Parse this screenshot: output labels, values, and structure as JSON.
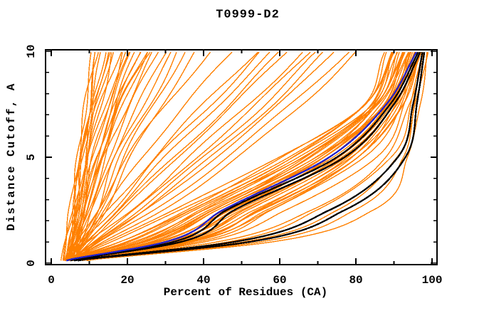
{
  "window": {
    "title": "T0999-D2"
  },
  "chart_data": {
    "type": "line",
    "title": "T0999-D2",
    "xlabel": "Percent of Residues (CA)",
    "ylabel": "Distance Cutoff, A",
    "xlim": [
      0,
      100
    ],
    "ylim": [
      0,
      10
    ],
    "x_major_ticks": [
      0,
      20,
      40,
      60,
      80,
      100
    ],
    "x_minor_ticks": [
      10,
      30,
      50,
      70,
      90
    ],
    "y_major_ticks": [
      0,
      5,
      10
    ],
    "y_minor_ticks": [
      1,
      2,
      3,
      4,
      6,
      7,
      8,
      9
    ],
    "grid": false,
    "legend": "none",
    "background": "#ffffff",
    "axis_color": "#000000",
    "y_levels": [
      0.15,
      1,
      2.5,
      5,
      7.5,
      10
    ],
    "series": [
      {
        "name": "model-curves-orange",
        "color": "#ff8000",
        "width": 1.4,
        "curves": [
          [
            4,
            5,
            6,
            8,
            10,
            12
          ],
          [
            4,
            5,
            7,
            9,
            12,
            15
          ],
          [
            5,
            6,
            8,
            11,
            15,
            19
          ],
          [
            4,
            6,
            9,
            13,
            17,
            22
          ],
          [
            5,
            7,
            10,
            14,
            19,
            25
          ],
          [
            4,
            6,
            9,
            14,
            20,
            27
          ],
          [
            5,
            7,
            11,
            16,
            23,
            30
          ],
          [
            6,
            8,
            12,
            18,
            26,
            33
          ],
          [
            4,
            5,
            8,
            12,
            17,
            24
          ],
          [
            3,
            4,
            6,
            9,
            13,
            18
          ],
          [
            4,
            5,
            7,
            10,
            14,
            20
          ],
          [
            5,
            6,
            9,
            13,
            18,
            26
          ],
          [
            6,
            9,
            13,
            19,
            27,
            35
          ],
          [
            4,
            5,
            6,
            7,
            9,
            11
          ],
          [
            3,
            4,
            5,
            7,
            9,
            12
          ],
          [
            5,
            6,
            8,
            10,
            13,
            16
          ],
          [
            6,
            7,
            9,
            12,
            16,
            21
          ],
          [
            4,
            5,
            7,
            9,
            11,
            14
          ],
          [
            5,
            8,
            12,
            17,
            24,
            32
          ],
          [
            6,
            8,
            11,
            15,
            21,
            28
          ],
          [
            3,
            4,
            6,
            8,
            11,
            15
          ],
          [
            4,
            6,
            8,
            11,
            15,
            21
          ],
          [
            5,
            7,
            9,
            12,
            17,
            23
          ],
          [
            6,
            9,
            14,
            21,
            29,
            38
          ],
          [
            4,
            5,
            6,
            8,
            11,
            13
          ],
          [
            5,
            6,
            7,
            9,
            12,
            16
          ],
          [
            4,
            5,
            7,
            8,
            10,
            12
          ],
          [
            6,
            7,
            10,
            13,
            18,
            25
          ],
          [
            4,
            7,
            12,
            20,
            30,
            42
          ],
          [
            4,
            8,
            14,
            24,
            35,
            48
          ],
          [
            5,
            8,
            15,
            27,
            40,
            54
          ],
          [
            4,
            9,
            17,
            30,
            44,
            58
          ],
          [
            5,
            10,
            19,
            33,
            48,
            62
          ],
          [
            4,
            10,
            21,
            36,
            52,
            66
          ],
          [
            5,
            11,
            23,
            40,
            56,
            70
          ],
          [
            6,
            12,
            25,
            43,
            60,
            74
          ],
          [
            4,
            8,
            16,
            28,
            42,
            55
          ],
          [
            5,
            9,
            18,
            32,
            47,
            60
          ],
          [
            6,
            13,
            27,
            46,
            63,
            78
          ],
          [
            5,
            12,
            24,
            42,
            58,
            72
          ],
          [
            4,
            11,
            22,
            38,
            54,
            68
          ],
          [
            6,
            14,
            29,
            49,
            66,
            80
          ],
          [
            4,
            14,
            32,
            60,
            82,
            88
          ],
          [
            4,
            16,
            34,
            62,
            83,
            89
          ],
          [
            4,
            18,
            36,
            64,
            84,
            90
          ],
          [
            5,
            20,
            38,
            66,
            85,
            91
          ],
          [
            4,
            22,
            40,
            68,
            86,
            92
          ],
          [
            5,
            24,
            42,
            70,
            87,
            93
          ],
          [
            4,
            26,
            44,
            71,
            87,
            93.5
          ],
          [
            5,
            28,
            46,
            72,
            88,
            94
          ],
          [
            4,
            30,
            48,
            74,
            88,
            94.5
          ],
          [
            5,
            31,
            49,
            75,
            89,
            95
          ],
          [
            4,
            32,
            50,
            76,
            89,
            95
          ],
          [
            5,
            33,
            52,
            77,
            90,
            95.5
          ],
          [
            4,
            34,
            53,
            78,
            90,
            96
          ],
          [
            5,
            35,
            54,
            79,
            91,
            96
          ],
          [
            4,
            36,
            55,
            80,
            91,
            96.5
          ],
          [
            5,
            37,
            56,
            81,
            92,
            97
          ],
          [
            4,
            38,
            58,
            82,
            92,
            97
          ],
          [
            5,
            30,
            47,
            73,
            88,
            94
          ],
          [
            4,
            28,
            45,
            71,
            87,
            93
          ],
          [
            5,
            26,
            43,
            69,
            86,
            92.5
          ],
          [
            4,
            24,
            41,
            67,
            85,
            91.5
          ],
          [
            5,
            22,
            39,
            65,
            84,
            90.5
          ],
          [
            4,
            20,
            37,
            63,
            83,
            89.5
          ],
          [
            5,
            18,
            35,
            61,
            82,
            88.5
          ],
          [
            4,
            33,
            51,
            76,
            90,
            95.5
          ],
          [
            5,
            35,
            55,
            79,
            91,
            96.5
          ],
          [
            4,
            29,
            46,
            72,
            87,
            93.5
          ],
          [
            5,
            27,
            44,
            70,
            86,
            92
          ],
          [
            4,
            25,
            42,
            68,
            85,
            91
          ],
          [
            5,
            23,
            40,
            66,
            84,
            90
          ],
          [
            4,
            31,
            50,
            75,
            89,
            94.5
          ],
          [
            5,
            36,
            57,
            81,
            92,
            97.5
          ],
          [
            6,
            40,
            62,
            85,
            93,
            97
          ],
          [
            7,
            44,
            68,
            88,
            94,
            97.5
          ],
          [
            8,
            50,
            75,
            91,
            95,
            98
          ],
          [
            9,
            55,
            80,
            92,
            96,
            98.5
          ],
          [
            10,
            58,
            84,
            94,
            96.5,
            99
          ],
          [
            7,
            46,
            70,
            89,
            94.5,
            98
          ]
        ]
      },
      {
        "name": "reference-curves-black",
        "color": "#000000",
        "width": 2.3,
        "curves": [
          [
            5,
            34,
            48,
            77,
            90,
            97
          ],
          [
            5,
            32,
            46,
            75,
            89,
            96.5
          ],
          [
            7,
            52,
            77,
            93,
            96,
            98
          ],
          [
            6,
            48,
            73,
            91,
            95,
            97.5
          ]
        ]
      },
      {
        "name": "highlight-curve-blue",
        "color": "#2222cc",
        "width": 2.3,
        "curves": [
          [
            4,
            30,
            45,
            73,
            88,
            96
          ]
        ]
      }
    ]
  }
}
